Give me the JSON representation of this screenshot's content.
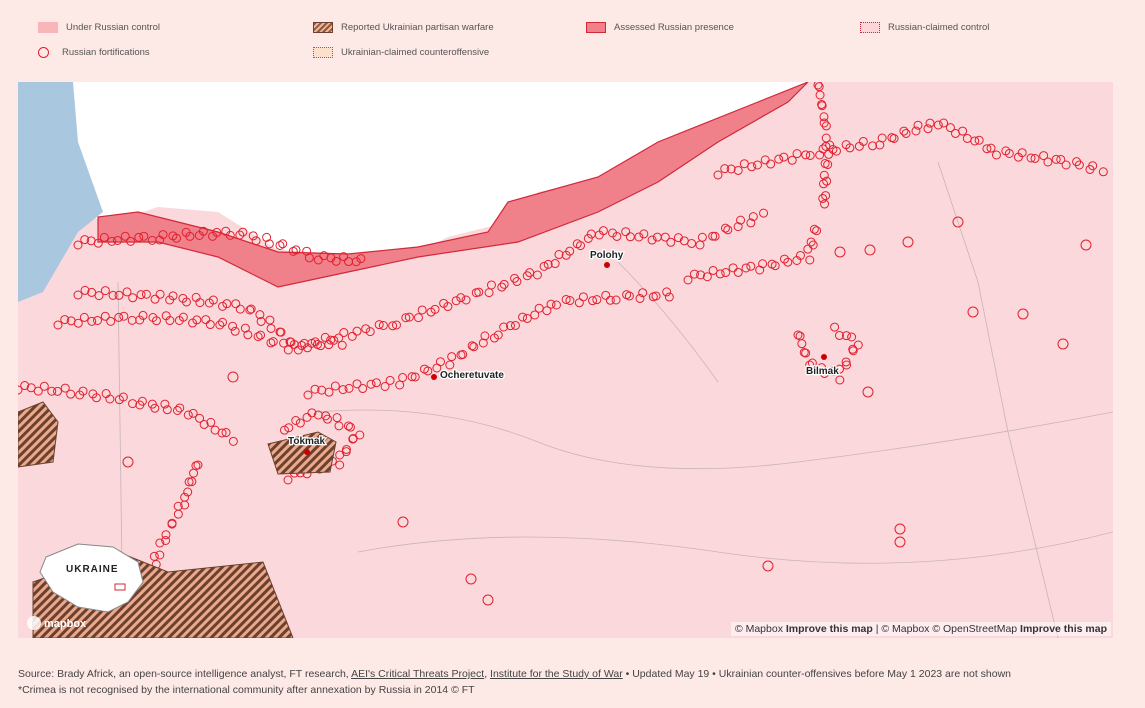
{
  "legend": [
    {
      "label": "Under Russian control",
      "type": "under-control",
      "color": "#f7b6b9"
    },
    {
      "label": "Reported Ukrainian partisan warfare",
      "type": "hatched",
      "color": "#8a5a44"
    },
    {
      "label": "Assessed Russian presence",
      "type": "assessed",
      "color": "#f0808a"
    },
    {
      "label": "Russian-claimed control",
      "type": "dotted-pink",
      "color": "#fcd6d8"
    },
    {
      "label": "Russian fortifications",
      "type": "circle",
      "color": "#e0202e"
    },
    {
      "label": "Ukrainian-claimed counteroffensive",
      "type": "dotted-orange",
      "color": "#fde0cc"
    }
  ],
  "map": {
    "cities": [
      "Polohy",
      "Ocheretuvate",
      "Bilmak",
      "Tokmak"
    ],
    "inset_label": "UKRAINE",
    "logo": "mapbox",
    "colors": {
      "russian": "#fbd8db",
      "ukraine": "#ffffff",
      "sea": "#a9c8e0",
      "fort": "#e0202e"
    }
  },
  "attribution": {
    "mapbox1": "© Mapbox",
    "improve1": "Improve this map",
    "sep": "|",
    "mapbox2": "© Mapbox",
    "osm": "© OpenStreetMap",
    "improve2": "Improve this map"
  },
  "footer": {
    "source_prefix": "Source: Brady Africk, an open-source intelligence analyst, FT research,",
    "link1": "AEI's Critical Threats Project",
    "link2": "Institute for the Study of War",
    "source_suffix": "• Updated May 19 • Ukrainian counter-offensives before May 1 2023 are not shown",
    "note": "*Crimea is not recognised by the international community after annexation by Russia in 2014 © FT"
  }
}
